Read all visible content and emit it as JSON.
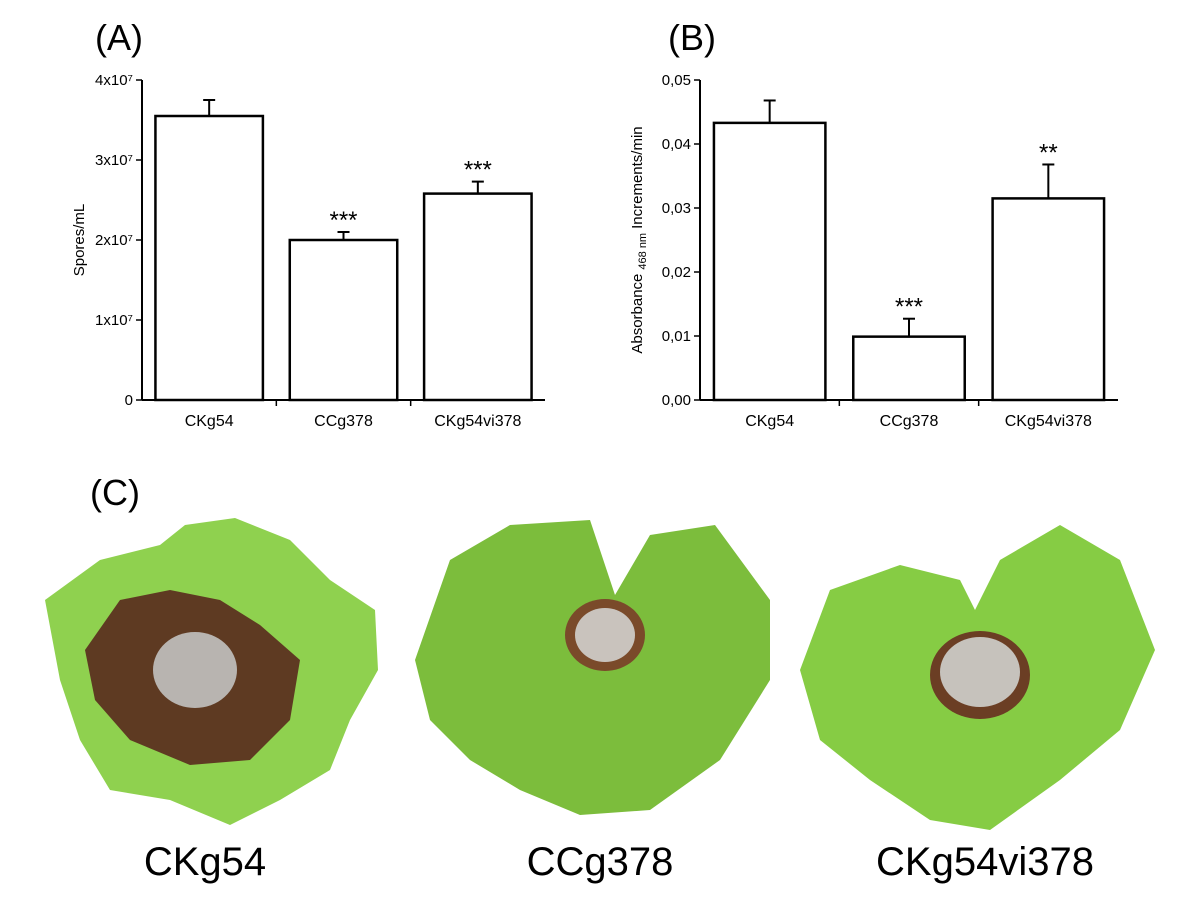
{
  "chart_data": [
    {
      "type": "bar",
      "panel_label": "(A)",
      "y_label": "Spores/mL",
      "categories": [
        "CKg54",
        "CCg378",
        "CKg54vi378"
      ],
      "values": [
        35500000,
        20000000,
        25800000
      ],
      "errors": [
        2000000,
        1000000,
        1500000
      ],
      "annotations": [
        null,
        "***",
        "***"
      ],
      "color": "#ffffff",
      "ylim": [
        0,
        40000000
      ],
      "yticks": [
        0,
        {
          "value": 10000000,
          "label": "1x10⁷"
        },
        {
          "value": 20000000,
          "label": "2x10⁷"
        },
        {
          "value": 30000000,
          "label": "3x10⁷"
        },
        {
          "value": 40000000,
          "label": "4x10⁷"
        }
      ]
    },
    {
      "type": "bar",
      "panel_label": "(B)",
      "y_label": "Absorbance",
      "y_label_sub": "468 nm",
      "y_label_suffix": "Increments/min",
      "categories": [
        "CKg54",
        "CCg378",
        "CKg54vi378"
      ],
      "values": [
        0.0433,
        0.0099,
        0.0315
      ],
      "errors": [
        0.0035,
        0.0028,
        0.0053
      ],
      "annotations": [
        null,
        "***",
        "**"
      ],
      "color": "#ffffff",
      "ylim": [
        0,
        0.05
      ],
      "yticks": [
        {
          "value": 0,
          "label": "0,00"
        },
        {
          "value": 0.01,
          "label": "0,01"
        },
        {
          "value": 0.02,
          "label": "0,02"
        },
        {
          "value": 0.03,
          "label": "0,03"
        },
        {
          "value": 0.04,
          "label": "0,04"
        },
        {
          "value": 0.05,
          "label": "0,05"
        }
      ]
    }
  ],
  "panel_c": {
    "label": "(C)",
    "captions": [
      "CKg54",
      "CCg378",
      "CKg54vi378"
    ]
  }
}
